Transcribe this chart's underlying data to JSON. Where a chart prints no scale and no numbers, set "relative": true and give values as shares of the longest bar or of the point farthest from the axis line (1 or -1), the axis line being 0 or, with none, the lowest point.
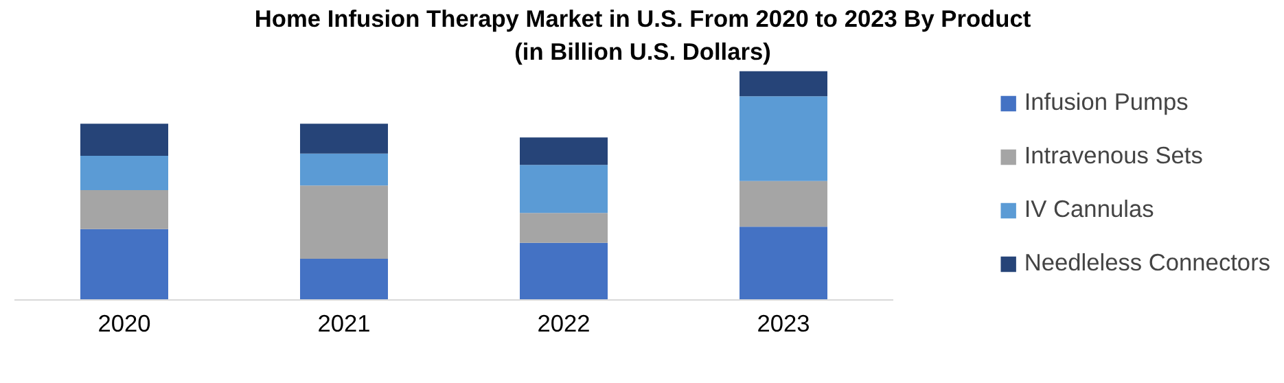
{
  "chart_data": {
    "type": "bar",
    "title": "Home Infusion Therapy Market in U.S. From 2020 to 2023 By Product",
    "subtitle": "(in Billion U.S. Dollars)",
    "categories": [
      "2020",
      "2021",
      "2022",
      "2023"
    ],
    "stacked": true,
    "relative": true,
    "legend": "right",
    "grid": false,
    "series": [
      {
        "name": "Infusion Pumps",
        "color": "#4472c4",
        "values": [
          0.31,
          0.18,
          0.25,
          0.32
        ]
      },
      {
        "name": "Intravenous Sets",
        "color": "#a5a5a5",
        "values": [
          0.17,
          0.32,
          0.13,
          0.2
        ]
      },
      {
        "name": "IV Cannulas",
        "color": "#5b9bd5",
        "values": [
          0.15,
          0.14,
          0.21,
          0.37
        ]
      },
      {
        "name": "Needleless Connectors",
        "color": "#264478",
        "values": [
          0.14,
          0.13,
          0.12,
          0.11
        ]
      }
    ]
  }
}
